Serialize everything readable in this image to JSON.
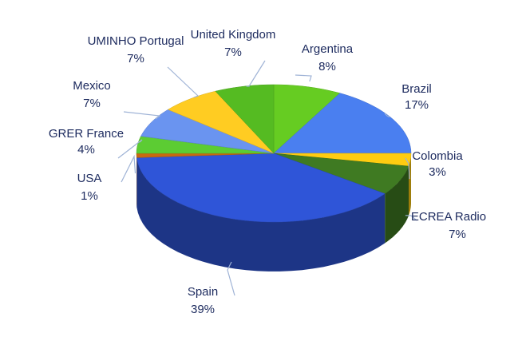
{
  "chart_data": {
    "type": "pie3d",
    "categories": [
      "Argentina",
      "Brazil",
      "Colombia",
      "ECREA Radio",
      "Spain",
      "USA",
      "GRER France",
      "Mexico",
      "UMINHO Portugal",
      "United Kingdom"
    ],
    "values": [
      8,
      17,
      3,
      7,
      39,
      1,
      4,
      7,
      7,
      7
    ],
    "value_labels": [
      "8%",
      "17%",
      "3%",
      "7%",
      "39%",
      "1%",
      "4%",
      "7%",
      "7%",
      "7%"
    ],
    "colors": [
      "#66cc22",
      "#4a7ff0",
      "#ffcc11",
      "#3f7a22",
      "#2f55d8",
      "#c86a10",
      "#5ccc33",
      "#6a94f0",
      "#ffcc22",
      "#55bb22"
    ]
  }
}
